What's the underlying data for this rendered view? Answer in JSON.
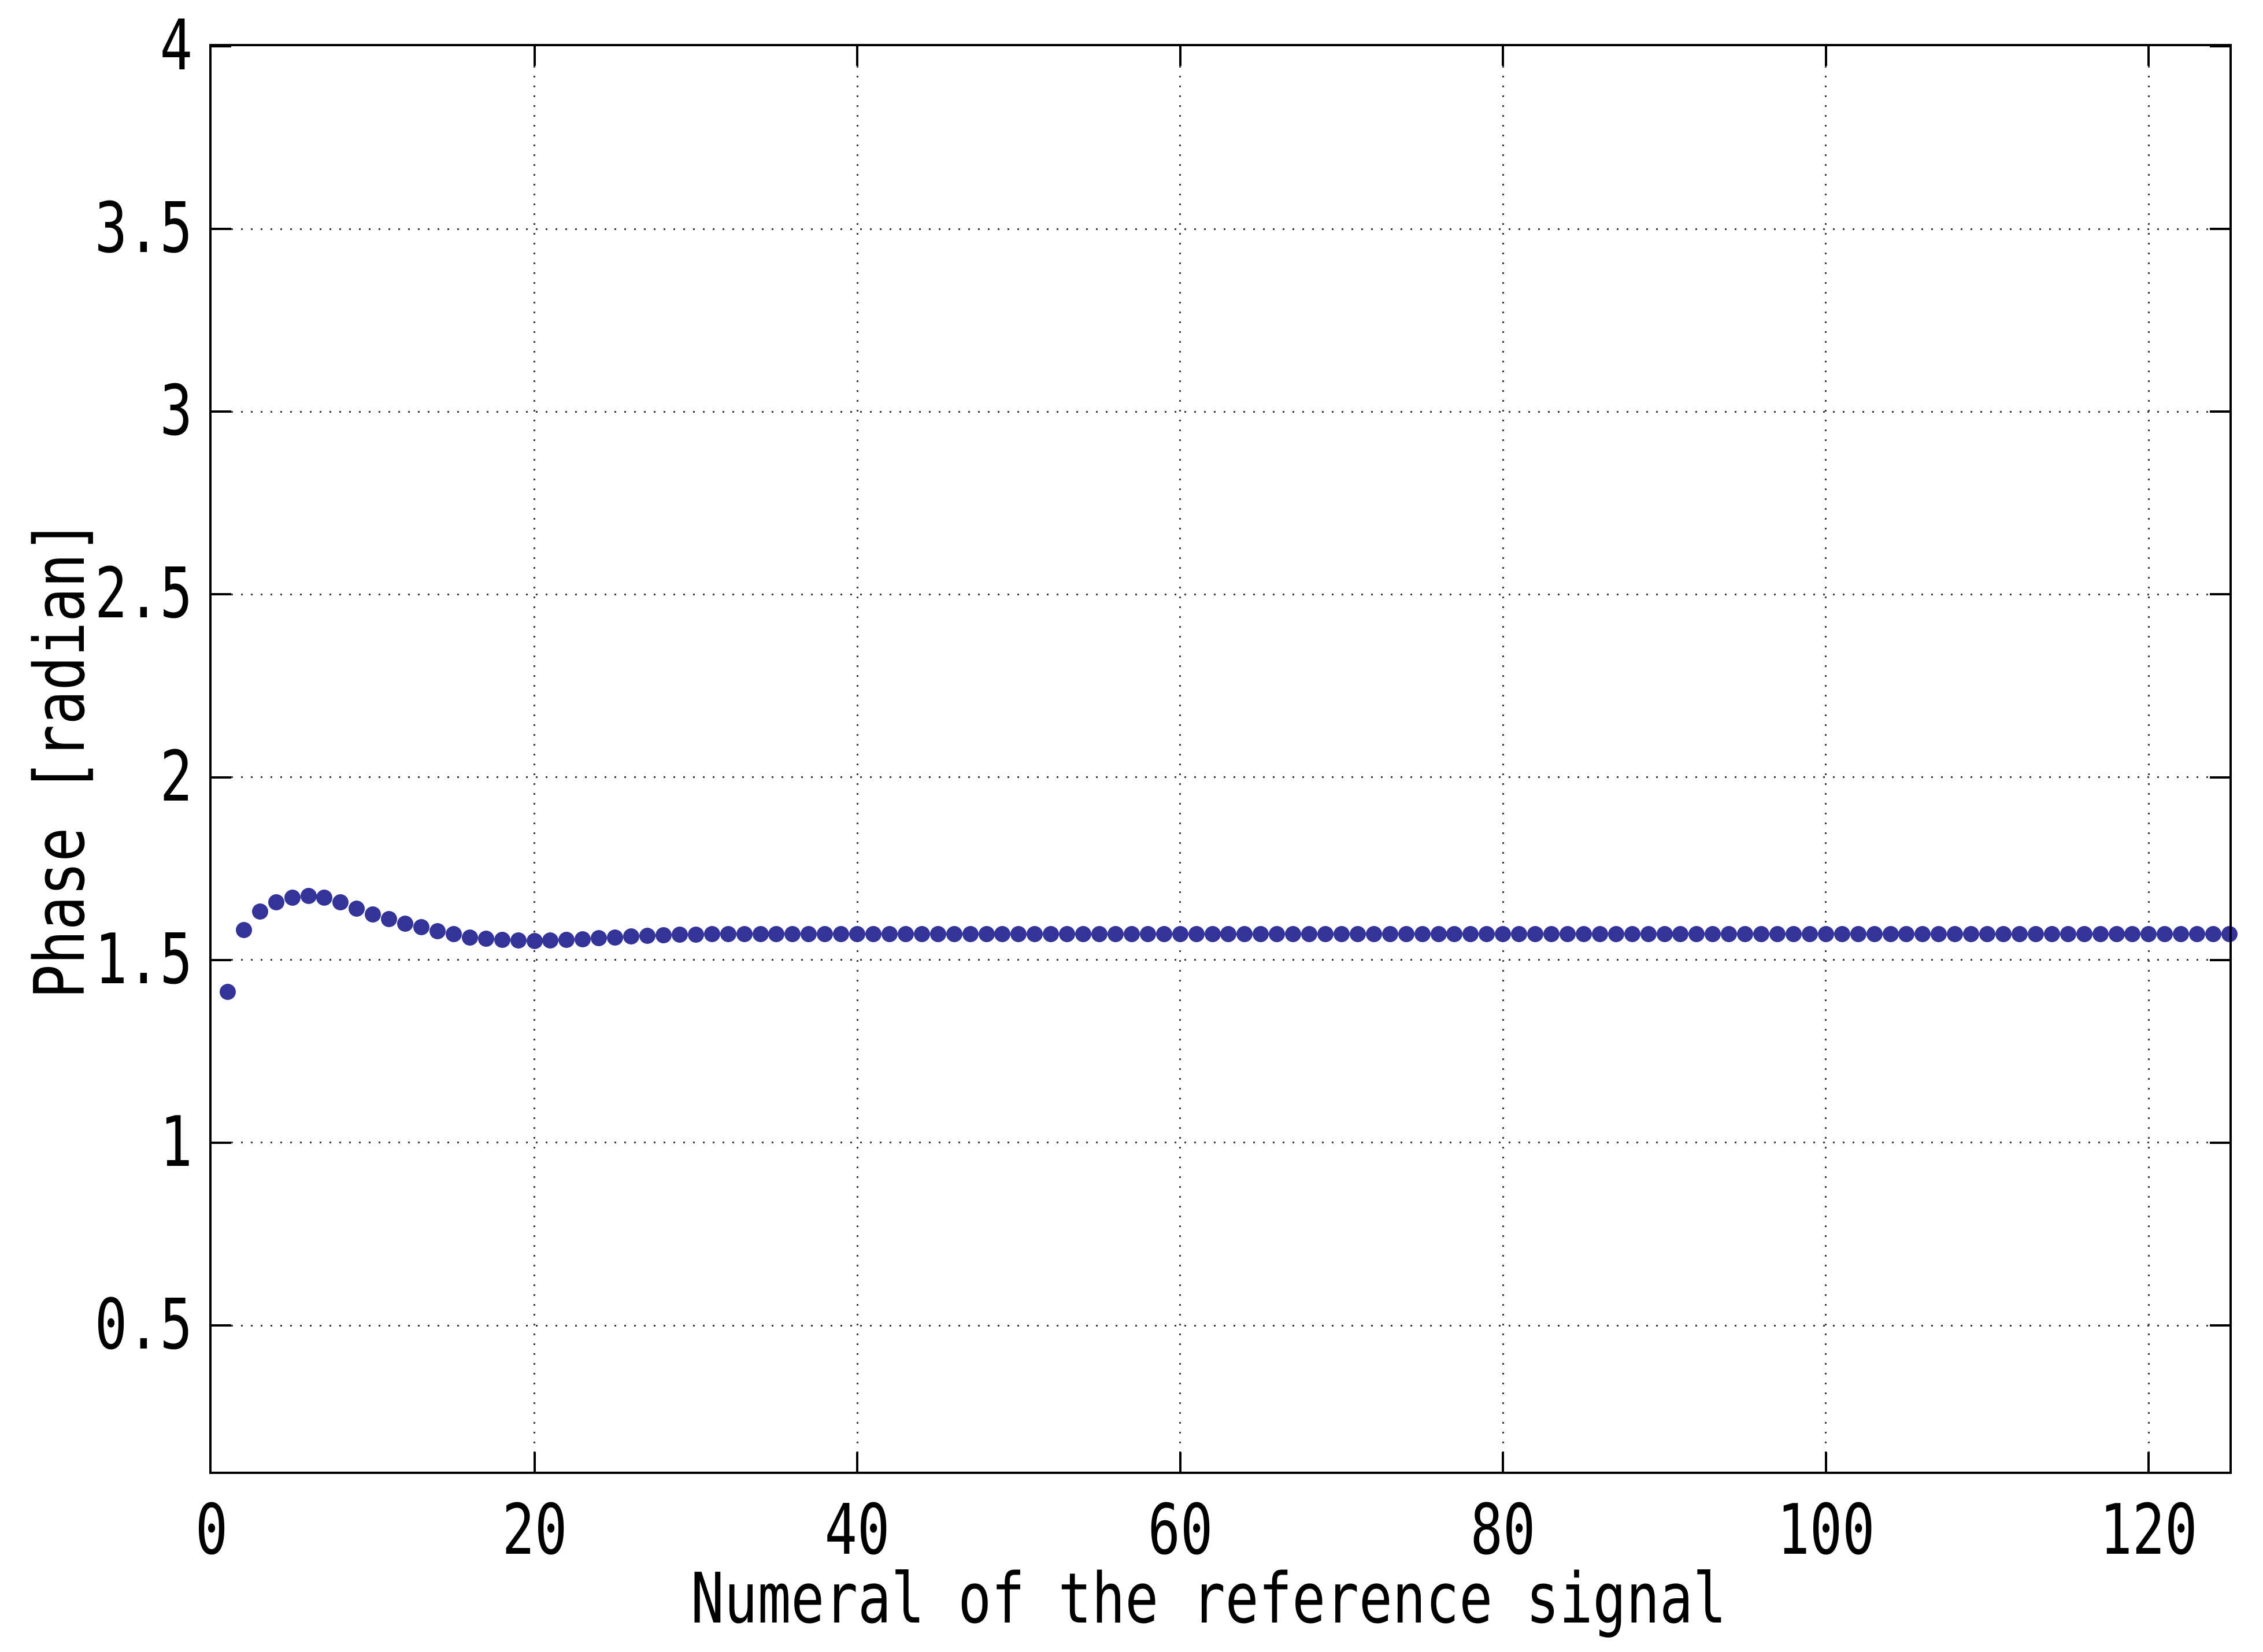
{
  "figure": {
    "background_color": "#ffffff",
    "axis_color": "#000000",
    "grid_color": "#3a3a3a",
    "marker_color": "#333399"
  },
  "chart_data": {
    "type": "scatter",
    "title": "",
    "xlabel": "Numeral of the reference signal",
    "ylabel": "Phase [radian]",
    "xlim": [
      0,
      125
    ],
    "ylim": [
      0.1,
      4
    ],
    "grid": "dotted",
    "legend": "none",
    "x_ticks": [
      0,
      20,
      40,
      60,
      80,
      100,
      120
    ],
    "x_tick_labels": [
      "0",
      "20",
      "40",
      "60",
      "80",
      "100",
      "120"
    ],
    "y_ticks": [
      0.5,
      1,
      1.5,
      2,
      2.5,
      3,
      3.5,
      4
    ],
    "y_tick_labels": [
      "0.5",
      "1",
      "1.5",
      "2",
      "2.5",
      "3",
      "3.5",
      "4"
    ],
    "marker": "filled-circle",
    "x": [
      1,
      2,
      3,
      4,
      5,
      6,
      7,
      8,
      9,
      10,
      11,
      12,
      13,
      14,
      15,
      16,
      17,
      18,
      19,
      20,
      21,
      22,
      23,
      24,
      25,
      26,
      27,
      28,
      29,
      30,
      31,
      32,
      33,
      34,
      35,
      36,
      37,
      38,
      39,
      40,
      41,
      42,
      43,
      44,
      45,
      46,
      47,
      48,
      49,
      50,
      51,
      52,
      53,
      54,
      55,
      56,
      57,
      58,
      59,
      60,
      61,
      62,
      63,
      64,
      65,
      66,
      67,
      68,
      69,
      70,
      71,
      72,
      73,
      74,
      75,
      76,
      77,
      78,
      79,
      80,
      81,
      82,
      83,
      84,
      85,
      86,
      87,
      88,
      89,
      90,
      91,
      92,
      93,
      94,
      95,
      96,
      97,
      98,
      99,
      100,
      101,
      102,
      103,
      104,
      105,
      106,
      107,
      108,
      109,
      110,
      111,
      112,
      113,
      114,
      115,
      116,
      117,
      118,
      119,
      120,
      121,
      122,
      123,
      124,
      125
    ],
    "y": [
      1.412,
      1.582,
      1.633,
      1.658,
      1.67,
      1.675,
      1.67,
      1.657,
      1.641,
      1.625,
      1.612,
      1.6,
      1.589,
      1.579,
      1.571,
      1.562,
      1.558,
      1.555,
      1.553,
      1.552,
      1.553,
      1.555,
      1.557,
      1.559,
      1.561,
      1.564,
      1.566,
      1.568,
      1.569,
      1.57,
      1.571,
      1.571,
      1.571,
      1.571,
      1.571,
      1.571,
      1.571,
      1.571,
      1.571,
      1.571,
      1.571,
      1.571,
      1.571,
      1.571,
      1.571,
      1.571,
      1.571,
      1.571,
      1.571,
      1.571,
      1.571,
      1.571,
      1.571,
      1.571,
      1.571,
      1.571,
      1.571,
      1.571,
      1.571,
      1.571,
      1.571,
      1.571,
      1.571,
      1.571,
      1.571,
      1.571,
      1.571,
      1.571,
      1.571,
      1.571,
      1.571,
      1.571,
      1.571,
      1.571,
      1.571,
      1.571,
      1.571,
      1.571,
      1.571,
      1.571,
      1.571,
      1.571,
      1.571,
      1.571,
      1.571,
      1.571,
      1.571,
      1.571,
      1.571,
      1.571,
      1.571,
      1.571,
      1.571,
      1.571,
      1.571,
      1.571,
      1.571,
      1.571,
      1.571,
      1.571,
      1.571,
      1.571,
      1.571,
      1.571,
      1.571,
      1.571,
      1.571,
      1.571,
      1.571,
      1.571,
      1.571,
      1.571,
      1.571,
      1.571,
      1.571,
      1.571,
      1.571,
      1.571,
      1.571,
      1.571,
      1.571,
      1.571,
      1.571,
      1.571,
      1.571
    ]
  }
}
